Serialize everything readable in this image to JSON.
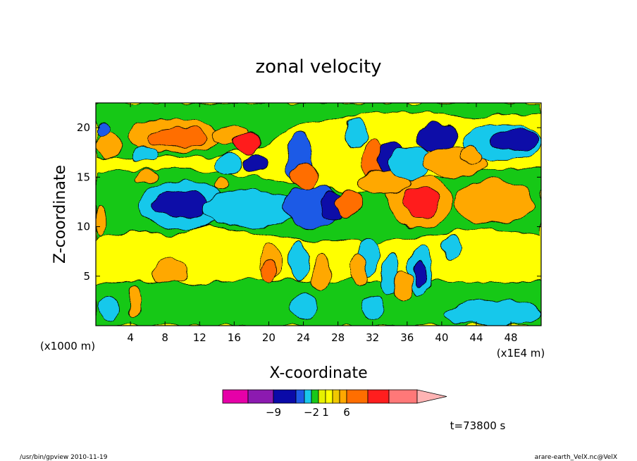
{
  "chart_data": {
    "type": "heatmap",
    "title": "zonal velocity",
    "xlabel": "X-coordinate",
    "ylabel": "Z-coordinate",
    "x_unit_label": "(x1E4 m)",
    "y_unit_label": "(x1000 m)",
    "x_ticks": [
      4,
      8,
      12,
      16,
      20,
      24,
      28,
      32,
      36,
      40,
      44,
      48
    ],
    "y_ticks": [
      5,
      10,
      15,
      20
    ],
    "xlim": [
      0,
      51.5
    ],
    "ylim": [
      0,
      22.5
    ],
    "colorbar": {
      "colors": [
        "#e600a8",
        "#8c1ab0",
        "#0a0aa8",
        "#1e5ae6",
        "#19c8eb",
        "#19c819",
        "#e6f000",
        "#ffff00",
        "#f0c800",
        "#ffa800",
        "#ff6e00",
        "#ff1e1e",
        "#ff7878",
        "#ffb4b4"
      ],
      "tick_labels": [
        {
          "label": "-9",
          "boundary": 2
        },
        {
          "label": "-2",
          "boundary": 5
        },
        {
          "label": "1",
          "boundary": 7
        },
        {
          "label": "6",
          "boundary": 10
        }
      ]
    },
    "blobs": [
      {
        "x": 10,
        "z": 12.2,
        "rx": 5,
        "rz": 2.4,
        "v": -3
      },
      {
        "x": 10,
        "z": 12.2,
        "rx": 3.3,
        "rz": 1.3,
        "v": -6
      },
      {
        "x": 18,
        "z": 11.8,
        "rx": 5.5,
        "rz": 1.8,
        "v": -2.5
      },
      {
        "x": 25,
        "z": 12,
        "rx": 3.4,
        "rz": 2.2,
        "v": -4
      },
      {
        "x": 27.5,
        "z": 12,
        "rx": 1.6,
        "rz": 1.4,
        "v": -7
      },
      {
        "x": 29.3,
        "z": 12.3,
        "rx": 1.6,
        "rz": 1.5,
        "v": 5
      },
      {
        "x": 37.5,
        "z": 12.5,
        "rx": 3.8,
        "rz": 2.6,
        "v": 3.5
      },
      {
        "x": 37.5,
        "z": 12.5,
        "rx": 2,
        "rz": 1.5,
        "v": 6.5
      },
      {
        "x": 46,
        "z": 12.5,
        "rx": 4.5,
        "rz": 2.2,
        "v": 3.5
      },
      {
        "x": 9,
        "z": 19.2,
        "rx": 5.5,
        "rz": 1.7,
        "v": 3
      },
      {
        "x": 9.5,
        "z": 19,
        "rx": 3.3,
        "rz": 1,
        "v": 5
      },
      {
        "x": 15.5,
        "z": 19.2,
        "rx": 2,
        "rz": 1.1,
        "v": 3
      },
      {
        "x": 17.5,
        "z": 18.5,
        "rx": 1.6,
        "rz": 1,
        "v": 6
      },
      {
        "x": 18.5,
        "z": 16.5,
        "rx": 1.5,
        "rz": 1,
        "v": -6
      },
      {
        "x": 15.3,
        "z": 16.3,
        "rx": 1.6,
        "rz": 1,
        "v": -2.5
      },
      {
        "x": 23.5,
        "z": 17,
        "rx": 1.5,
        "rz": 2.5,
        "v": -5
      },
      {
        "x": 24.2,
        "z": 15.2,
        "rx": 1.5,
        "rz": 1.2,
        "v": 5
      },
      {
        "x": 5.5,
        "z": 17.5,
        "rx": 1.5,
        "rz": 0.8,
        "v": -2.5
      },
      {
        "x": 1.5,
        "z": 18.2,
        "rx": 1.5,
        "rz": 1.3,
        "v": 3
      },
      {
        "x": 0.8,
        "z": 19.8,
        "rx": 0.9,
        "rz": 0.7,
        "v": -4
      },
      {
        "x": 6,
        "z": 15,
        "rx": 1.3,
        "rz": 0.7,
        "v": 3
      },
      {
        "x": 14.5,
        "z": 14.3,
        "rx": 1,
        "rz": 0.7,
        "v": 3
      },
      {
        "x": 32,
        "z": 16.5,
        "rx": 1.3,
        "rz": 2.2,
        "v": 5
      },
      {
        "x": 34,
        "z": 17,
        "rx": 1.4,
        "rz": 1.5,
        "v": -6
      },
      {
        "x": 33.5,
        "z": 14.5,
        "rx": 3,
        "rz": 1.3,
        "v": 3
      },
      {
        "x": 36.5,
        "z": 16.5,
        "rx": 2.6,
        "rz": 1.6,
        "v": -3
      },
      {
        "x": 39.5,
        "z": 19,
        "rx": 2.3,
        "rz": 1.5,
        "v": -6
      },
      {
        "x": 41.5,
        "z": 16.5,
        "rx": 3.6,
        "rz": 1.5,
        "v": 3
      },
      {
        "x": 47,
        "z": 18.5,
        "rx": 4.5,
        "rz": 1.8,
        "v": -3
      },
      {
        "x": 48.5,
        "z": 18.8,
        "rx": 2.6,
        "rz": 1,
        "v": -6
      },
      {
        "x": 43.5,
        "z": 17.2,
        "rx": 1.3,
        "rz": 0.8,
        "v": 3
      },
      {
        "x": 30,
        "z": 19.5,
        "rx": 1.5,
        "rz": 1.5,
        "v": -2.5
      },
      {
        "x": 37.5,
        "z": 5.5,
        "rx": 1.4,
        "rz": 2.5,
        "v": -3
      },
      {
        "x": 37.5,
        "z": 5.2,
        "rx": 0.8,
        "rz": 1.3,
        "v": -6
      },
      {
        "x": 34,
        "z": 5,
        "rx": 1,
        "rz": 2,
        "v": -2.5
      },
      {
        "x": 35.5,
        "z": 4,
        "rx": 1,
        "rz": 1.5,
        "v": 3
      },
      {
        "x": 20.3,
        "z": 6.5,
        "rx": 1.3,
        "rz": 1.6,
        "v": 3
      },
      {
        "x": 20,
        "z": 5.5,
        "rx": 0.8,
        "rz": 1,
        "v": 5
      },
      {
        "x": 23.5,
        "z": 6.5,
        "rx": 1,
        "rz": 2,
        "v": -2.5
      },
      {
        "x": 26,
        "z": 5.5,
        "rx": 1,
        "rz": 2,
        "v": 3
      },
      {
        "x": 31.5,
        "z": 7,
        "rx": 1.1,
        "rz": 2,
        "v": -2.5
      },
      {
        "x": 30.5,
        "z": 5.5,
        "rx": 0.9,
        "rz": 1.5,
        "v": 3
      },
      {
        "x": 4.5,
        "z": 2.5,
        "rx": 0.8,
        "rz": 1.6,
        "v": 3
      },
      {
        "x": 1.5,
        "z": 1.8,
        "rx": 1.3,
        "rz": 1.2,
        "v": -2.5
      },
      {
        "x": 46,
        "z": 1.3,
        "rx": 5.5,
        "rz": 1.3,
        "v": -2.5
      },
      {
        "x": 32,
        "z": 1.8,
        "rx": 1.4,
        "rz": 1.2,
        "v": -2.5
      },
      {
        "x": 24,
        "z": 2,
        "rx": 1.5,
        "rz": 1.3,
        "v": -2.5
      },
      {
        "x": 41,
        "z": 8,
        "rx": 1,
        "rz": 1.2,
        "v": -2.5
      },
      {
        "x": 8.5,
        "z": 5.5,
        "rx": 2,
        "rz": 1.3,
        "v": 3
      },
      {
        "x": 0.6,
        "z": 10.5,
        "rx": 0.6,
        "rz": 1.5,
        "v": 3
      }
    ],
    "footer_time": "t=73800 s",
    "footer_left": "/usr/bin/gpview  2010-11-19",
    "footer_right": "arare-earth_VelX.nc@VelX"
  }
}
